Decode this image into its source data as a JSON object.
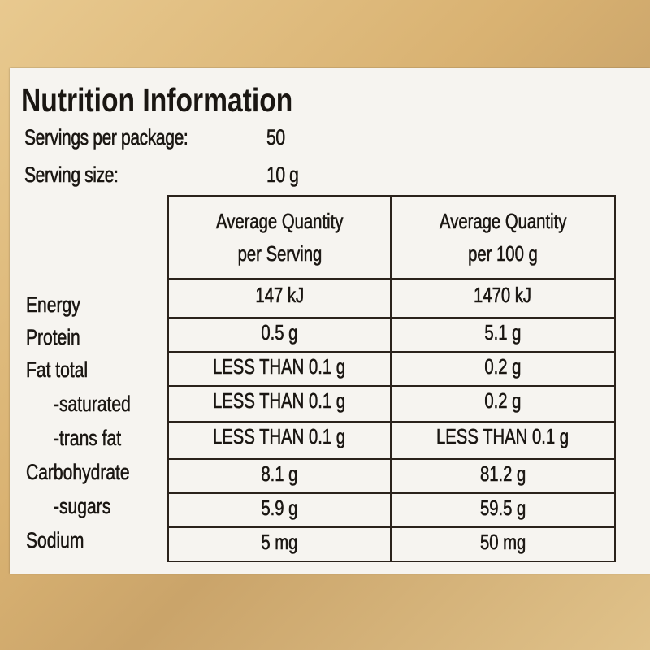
{
  "title": "Nutrition Information",
  "servings_per_package": {
    "label": "Servings per package:",
    "value": "50"
  },
  "serving_size": {
    "label": "Serving size:",
    "value": "10 g"
  },
  "table": {
    "headers": [
      {
        "line1": "Average Quantity",
        "line2": "per Serving"
      },
      {
        "line1": "Average Quantity",
        "line2": "per 100 g"
      }
    ],
    "rows": [
      {
        "label": "Energy",
        "per_serving": "147 kJ",
        "per_100g": "1470 kJ"
      },
      {
        "label": "Protein",
        "per_serving": "0.5 g",
        "per_100g": "5.1 g"
      },
      {
        "label": "Fat total",
        "per_serving": "LESS THAN 0.1 g",
        "per_100g": "0.2 g"
      },
      {
        "label": "-saturated",
        "per_serving": "LESS THAN 0.1 g",
        "per_100g": "0.2 g"
      },
      {
        "label": "-trans fat",
        "per_serving": "LESS THAN 0.1 g",
        "per_100g": "LESS THAN 0.1 g"
      },
      {
        "label": "Carbohydrate",
        "per_serving": "8.1 g",
        "per_100g": "81.2 g"
      },
      {
        "label": "-sugars",
        "per_serving": "5.9 g",
        "per_100g": "59.5 g"
      },
      {
        "label": "Sodium",
        "per_serving": "5 mg",
        "per_100g": "50 mg"
      }
    ]
  },
  "colors": {
    "label_bg": "#f6f4f0",
    "packaging": "#d9b272",
    "ink": "#1a1612"
  }
}
